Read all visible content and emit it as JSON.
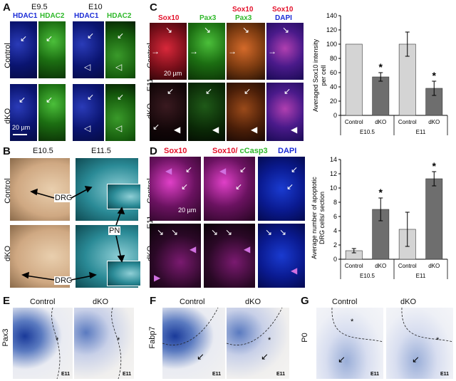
{
  "panels": {
    "A": {
      "letter": "A",
      "stage1": "E9.5",
      "stage2": "E10",
      "ch1": "HDAC1",
      "ch2": "HDAC2",
      "row1": "Control",
      "row2": "dKO",
      "scale": "20 µm",
      "colors": {
        "ch1": "#1a2bd6",
        "ch2": "#2fb82a"
      }
    },
    "B": {
      "letter": "B",
      "stage1": "E10.5",
      "stage2": "E11.5",
      "row1": "Control",
      "row2": "dKO",
      "drg": "DRG",
      "pn": "PN"
    },
    "C": {
      "letter": "C",
      "ch_sox10": "Sox10",
      "ch_pax3": "Pax3",
      "ch_dapi": "DAPI",
      "row1": "Control",
      "row2": "dKO",
      "stage": "E11",
      "scale": "20 µm",
      "colors": {
        "sox10": "#e3102a",
        "pax3": "#2fb82a",
        "dapi": "#1a2bd6"
      }
    },
    "D": {
      "letter": "D",
      "ch_sox10": "Sox10",
      "ch_merge": "Sox10/",
      "ch_casp": "cCasp3",
      "ch_dapi": "DAPI",
      "row1": "Control",
      "row2": "dKO",
      "stage": "E11",
      "scale": "20 µm"
    },
    "E": {
      "letter": "E",
      "col1": "Control",
      "col2": "dKO",
      "gene": "Pax3",
      "stage": "E11"
    },
    "F": {
      "letter": "F",
      "col1": "Control",
      "col2": "dKO",
      "gene": "Fabp7",
      "stage": "E11"
    },
    "G": {
      "letter": "G",
      "col1": "Control",
      "col2": "dKO",
      "gene": "P0",
      "stage": "E11"
    }
  },
  "chart_data": [
    {
      "type": "bar",
      "ylabel": "Averaged Sox10 intensity per cell",
      "categories": [
        "Control",
        "dKO",
        "Control",
        "dKO"
      ],
      "groups": [
        "E10.5",
        "E11"
      ],
      "values": [
        100,
        54,
        100,
        38
      ],
      "errors": [
        0,
        6,
        17,
        10
      ],
      "significance": [
        "",
        "*",
        "",
        "*"
      ],
      "ylim": [
        0,
        140
      ],
      "yticks": [
        0,
        20,
        40,
        60,
        80,
        100,
        120,
        140
      ],
      "bar_colors": [
        "#d4d4d4",
        "#6e6e6e",
        "#d4d4d4",
        "#6e6e6e"
      ]
    },
    {
      "type": "bar",
      "ylabel": "Average number of apoptotic DRG cells/ section",
      "categories": [
        "Control",
        "dKO",
        "Control",
        "dKO"
      ],
      "groups": [
        "E10.5",
        "E11"
      ],
      "values": [
        1.2,
        7.0,
        4.2,
        11.3
      ],
      "errors": [
        0.3,
        1.6,
        2.4,
        1.0
      ],
      "significance": [
        "",
        "*",
        "",
        "*"
      ],
      "ylim": [
        0,
        14
      ],
      "yticks": [
        0,
        2,
        4,
        6,
        8,
        10,
        12,
        14
      ],
      "bar_colors": [
        "#d4d4d4",
        "#6e6e6e",
        "#d4d4d4",
        "#6e6e6e"
      ]
    }
  ]
}
